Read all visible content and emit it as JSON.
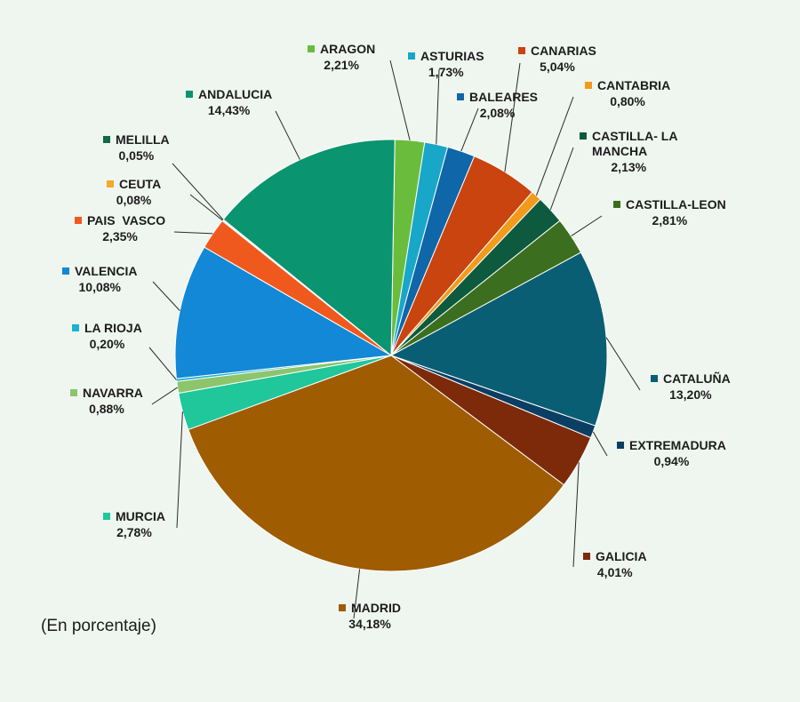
{
  "chart_data": {
    "type": "pie",
    "note": "(En porcentaje)",
    "slices": [
      {
        "label": "ARAGON",
        "value_label": "2,21%",
        "value": 2.21,
        "color": "#6abd3c",
        "label_lines": [
          "ARAGON"
        ]
      },
      {
        "label": "ASTURIAS",
        "value_label": "1,73%",
        "value": 1.73,
        "color": "#18a7c9",
        "label_lines": [
          "ASTURIAS"
        ]
      },
      {
        "label": "BALEARES",
        "value_label": "2,08%",
        "value": 2.08,
        "color": "#0f66a8",
        "label_lines": [
          "BALEARES"
        ]
      },
      {
        "label": "CANARIAS",
        "value_label": "5,04%",
        "value": 5.04,
        "color": "#c9440f",
        "label_lines": [
          "CANARIAS"
        ]
      },
      {
        "label": "CANTABRIA",
        "value_label": "0,80%",
        "value": 0.8,
        "color": "#f29b1b",
        "label_lines": [
          "CANTABRIA"
        ]
      },
      {
        "label": "CASTILLA- LA MANCHA",
        "value_label": "2,13%",
        "value": 2.13,
        "color": "#0d5a3f",
        "label_lines": [
          "CASTILLA- LA",
          "MANCHA"
        ]
      },
      {
        "label": "CASTILLA-LEON",
        "value_label": "2,81%",
        "value": 2.81,
        "color": "#3b6e1e",
        "label_lines": [
          "CASTILLA-LEON"
        ]
      },
      {
        "label": "CATALUÑA",
        "value_label": "13,20%",
        "value": 13.2,
        "color": "#0a5e73",
        "label_lines": [
          "CATALUÑA"
        ]
      },
      {
        "label": "EXTREMADURA",
        "value_label": "0,94%",
        "value": 0.94,
        "color": "#0b3e63",
        "label_lines": [
          "EXTREMADURA"
        ]
      },
      {
        "label": "GALICIA",
        "value_label": "4,01%",
        "value": 4.01,
        "color": "#7d2a0a",
        "label_lines": [
          "GALICIA"
        ]
      },
      {
        "label": "MADRID",
        "value_label": "34,18%",
        "value": 34.18,
        "color": "#a05c00",
        "label_lines": [
          "MADRID"
        ]
      },
      {
        "label": "MURCIA",
        "value_label": "2,78%",
        "value": 2.78,
        "color": "#1fc79a",
        "label_lines": [
          "MURCIA"
        ]
      },
      {
        "label": "NAVARRA",
        "value_label": "0,88%",
        "value": 0.88,
        "color": "#8cc56b",
        "label_lines": [
          "NAVARRA"
        ]
      },
      {
        "label": "LA RIOJA",
        "value_label": "0,20%",
        "value": 0.2,
        "color": "#1ab3d4",
        "label_lines": [
          "LA RIOJA"
        ]
      },
      {
        "label": "VALENCIA",
        "value_label": "10,08%",
        "value": 10.08,
        "color": "#1288d6",
        "label_lines": [
          "VALENCIA"
        ]
      },
      {
        "label": "PAIS  VASCO",
        "value_label": "2,35%",
        "value": 2.35,
        "color": "#f0591e",
        "label_lines": [
          "PAIS  VASCO"
        ]
      },
      {
        "label": "CEUTA",
        "value_label": "0,08%",
        "value": 0.08,
        "color": "#f4a82e",
        "label_lines": [
          "CEUTA"
        ]
      },
      {
        "label": "MELILLA",
        "value_label": "0,05%",
        "value": 0.05,
        "color": "#0f6b4a",
        "label_lines": [
          "MELILLA"
        ]
      },
      {
        "label": "ANDALUCIA",
        "value_label": "14,43%",
        "value": 14.43,
        "color": "#0a9470",
        "label_lines": [
          "ANDALUCIA"
        ]
      }
    ]
  }
}
